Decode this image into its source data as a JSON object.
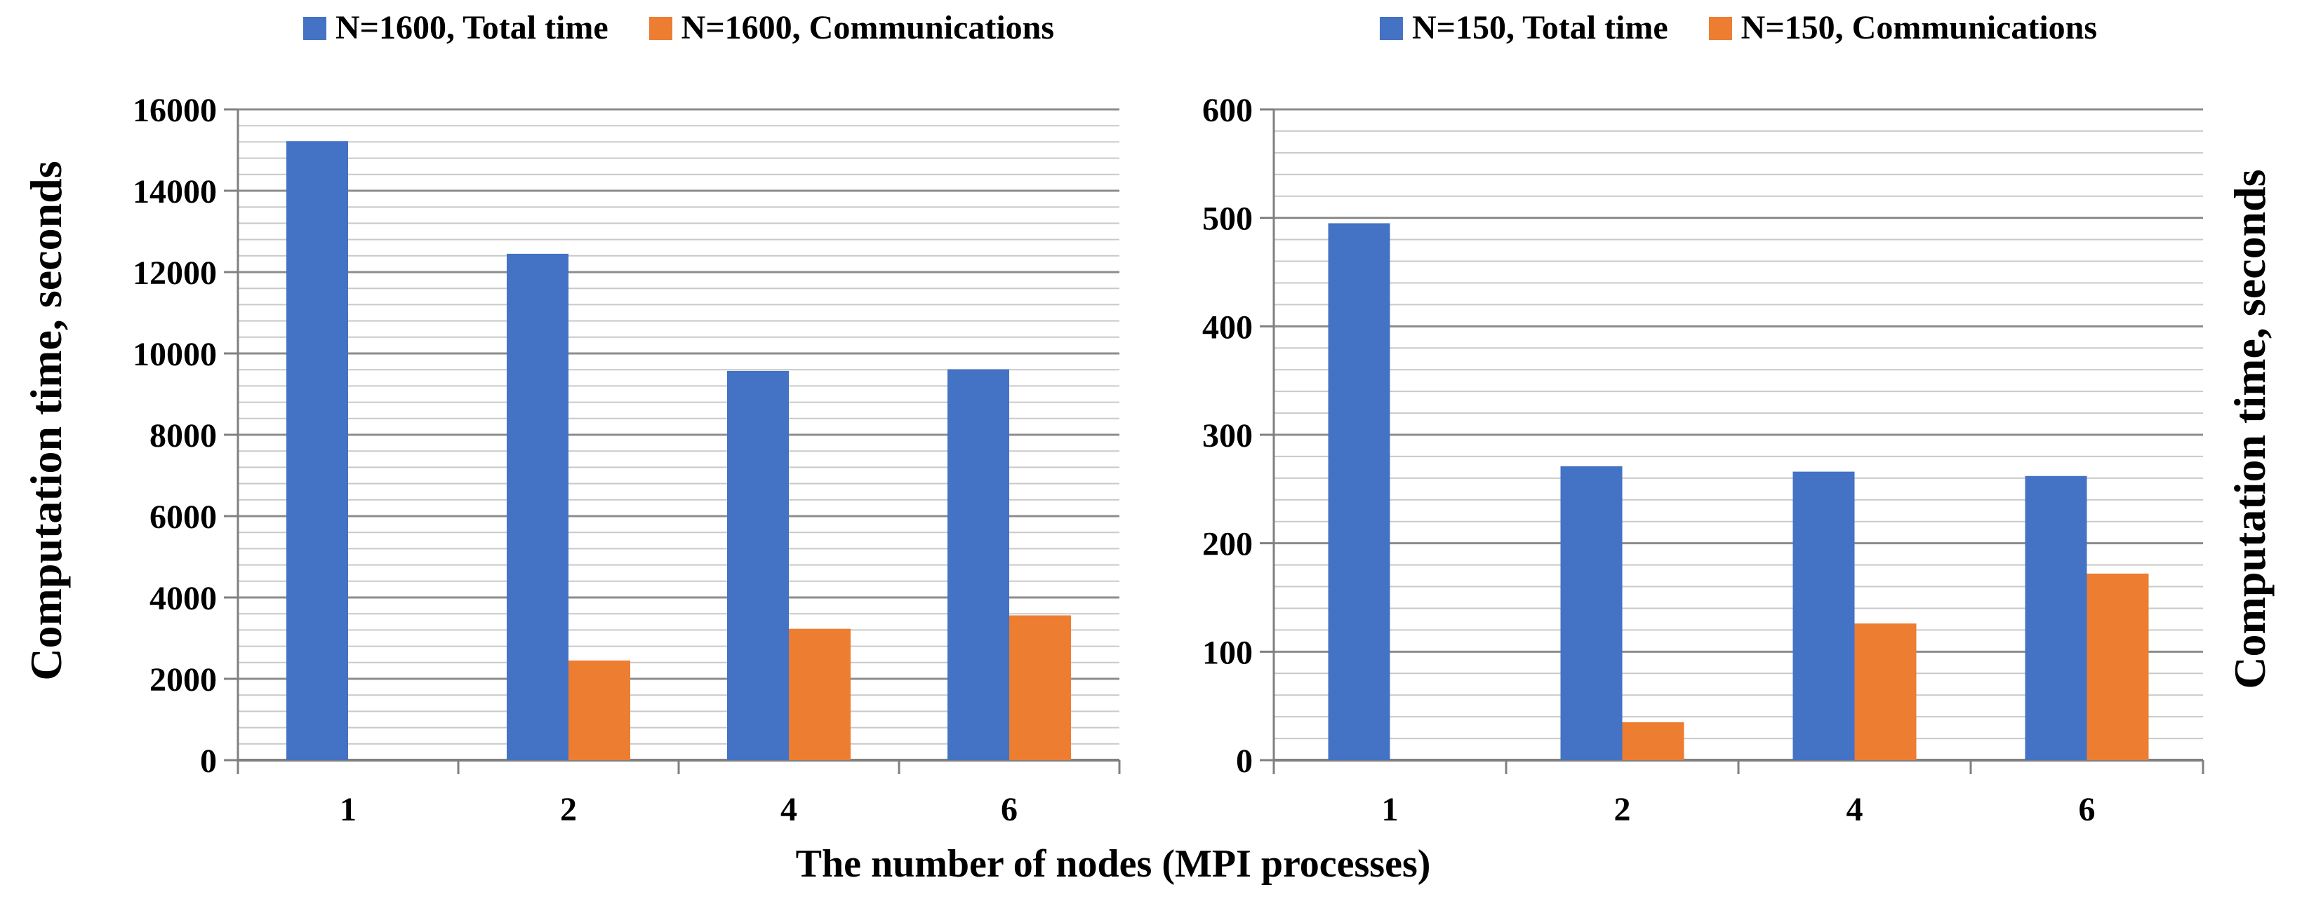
{
  "xlabel": "The number of nodes (MPI processes)",
  "palette": {
    "blue": "#4472C4",
    "orange": "#ED7D31",
    "minor_grid": "#C9C9C9",
    "major_grid": "#8C8C8C",
    "axis": "#808080",
    "text": "#000000",
    "background": "#FFFFFF"
  },
  "chart_data": [
    {
      "type": "bar",
      "title": "",
      "ylabel": "Computation time, seconds",
      "ylabel_side": "left",
      "xlabel_shared": "The number of nodes (MPI processes)",
      "categories": [
        "1",
        "2",
        "4",
        "6"
      ],
      "series": [
        {
          "name": "N=1600, Total time",
          "color": "#4472C4",
          "values": [
            15220,
            12450,
            9570,
            9610
          ]
        },
        {
          "name": "N=1600, Communications",
          "color": "#ED7D31",
          "values": [
            0,
            2450,
            3230,
            3560
          ]
        }
      ],
      "ylim": [
        0,
        16000
      ],
      "ytick_step": 2000,
      "yminor_step": 400,
      "ytick_labels": [
        "0",
        "2000",
        "4000",
        "6000",
        "8000",
        "10000",
        "12000",
        "14000",
        "16000"
      ],
      "grid": "horizontal minor+major, on",
      "legend_position": "top-center"
    },
    {
      "type": "bar",
      "title": "",
      "ylabel": "Computation time, seconds",
      "ylabel_side": "right",
      "xlabel_shared": "The number of nodes (MPI processes)",
      "categories": [
        "1",
        "2",
        "4",
        "6"
      ],
      "series": [
        {
          "name": "N=150, Total time",
          "color": "#4472C4",
          "values": [
            495,
            271,
            266,
            262
          ]
        },
        {
          "name": "N=150, Communications",
          "color": "#ED7D31",
          "values": [
            0,
            35,
            126,
            172
          ]
        }
      ],
      "ylim": [
        0,
        600
      ],
      "ytick_step": 100,
      "yminor_step": 20,
      "ytick_labels": [
        "0",
        "100",
        "200",
        "300",
        "400",
        "500",
        "600"
      ],
      "grid": "horizontal minor+major, on",
      "legend_position": "top-center"
    }
  ]
}
